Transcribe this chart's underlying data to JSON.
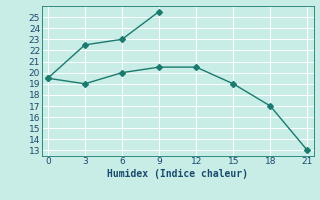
{
  "line1_x": [
    0,
    3,
    6,
    9
  ],
  "line1_y": [
    19.5,
    22.5,
    23.0,
    25.5
  ],
  "line2_x": [
    0,
    3,
    6,
    9,
    12,
    15,
    18,
    21
  ],
  "line2_y": [
    19.5,
    19.0,
    20.0,
    20.5,
    20.5,
    19.0,
    17.0,
    13.0
  ],
  "line_color": "#1a7a6e",
  "bg_color": "#c8ece6",
  "grid_color": "#b0d8d2",
  "xlabel": "Humidex (Indice chaleur)",
  "xlim": [
    -0.5,
    21.5
  ],
  "ylim": [
    12.5,
    26.0
  ],
  "xticks": [
    0,
    3,
    6,
    9,
    12,
    15,
    18,
    21
  ],
  "yticks": [
    13,
    14,
    15,
    16,
    17,
    18,
    19,
    20,
    21,
    22,
    23,
    24,
    25
  ],
  "font_color": "#1a4a6e",
  "marker": "D",
  "markersize": 3,
  "linewidth": 1.0
}
